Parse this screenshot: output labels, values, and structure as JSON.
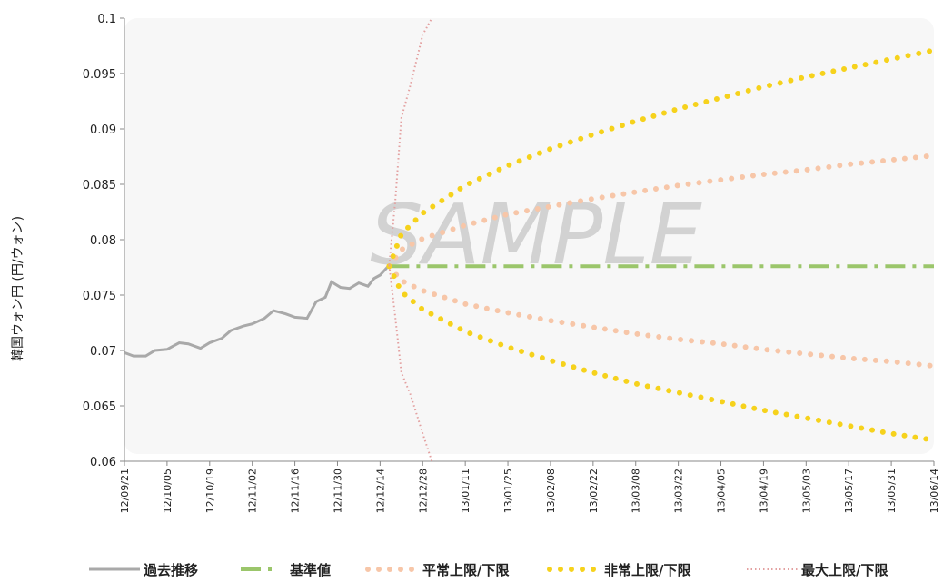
{
  "chart_data": {
    "type": "line",
    "ylabel": "韓国ウォン円 (円/ウォン)",
    "watermark": "SAMPLE",
    "xlim": [
      "12/09/21",
      "13/06/14"
    ],
    "xticks": [
      "12/09/21",
      "12/10/05",
      "12/10/19",
      "12/11/02",
      "12/11/16",
      "12/11/30",
      "12/12/14",
      "12/12/28",
      "13/01/11",
      "13/01/25",
      "13/02/08",
      "13/02/22",
      "13/03/08",
      "13/03/22",
      "13/04/05",
      "13/04/19",
      "13/05/03",
      "13/05/17",
      "13/05/31",
      "13/06/14"
    ],
    "ylim": [
      0.06,
      0.1
    ],
    "yticks": [
      0.06,
      0.065,
      0.07,
      0.075,
      0.08,
      0.085,
      0.09,
      0.095,
      0.1
    ],
    "series": [
      {
        "name": "過去推移",
        "color": "#a9a9a9",
        "line_style": "solid",
        "x": [
          "12/09/21",
          "12/09/24",
          "12/09/28",
          "12/10/01",
          "12/10/05",
          "12/10/09",
          "12/10/12",
          "12/10/16",
          "12/10/19",
          "12/10/23",
          "12/10/26",
          "12/10/30",
          "12/11/02",
          "12/11/06",
          "12/11/09",
          "12/11/13",
          "12/11/16",
          "12/11/20",
          "12/11/23",
          "12/11/26",
          "12/11/28",
          "12/12/01",
          "12/12/04",
          "12/12/07",
          "12/12/10",
          "12/12/12",
          "12/12/14",
          "12/12/17"
        ],
        "values": [
          0.0698,
          0.0695,
          0.0695,
          0.07,
          0.0701,
          0.0707,
          0.0706,
          0.0702,
          0.0707,
          0.0711,
          0.0718,
          0.0722,
          0.0724,
          0.0729,
          0.0736,
          0.0733,
          0.073,
          0.0729,
          0.0744,
          0.0748,
          0.0762,
          0.0757,
          0.0756,
          0.0761,
          0.0758,
          0.0765,
          0.0768,
          0.0777
        ]
      },
      {
        "name": "基準値",
        "color": "#9bc66b",
        "line_style": "dashdot",
        "x": [
          "12/12/17",
          "12/12/21",
          "12/12/28",
          "13/01/11",
          "13/01/25",
          "13/02/08",
          "13/02/22",
          "13/03/08",
          "13/03/22",
          "13/04/05",
          "13/04/19",
          "13/05/03",
          "13/05/17",
          "13/05/31",
          "13/06/14"
        ],
        "values": [
          0.0776,
          0.0776,
          0.0776,
          0.0776,
          0.0776,
          0.0776,
          0.0776,
          0.0776,
          0.0776,
          0.0776,
          0.0776,
          0.0776,
          0.0776,
          0.0776,
          0.0776
        ]
      },
      {
        "name": "平常上限/下限",
        "color": "#f7c6a8",
        "line_style": "dots",
        "x": [
          "12/12/17",
          "12/12/21",
          "12/12/28",
          "13/01/11",
          "13/01/25",
          "13/02/08",
          "13/02/22",
          "13/03/08",
          "13/03/22",
          "13/04/05",
          "13/04/19",
          "13/05/03",
          "13/05/17",
          "13/05/31",
          "13/06/14"
        ],
        "values": [
          0.0776,
          0.0791,
          0.0801,
          0.0813,
          0.0823,
          0.083,
          0.0837,
          0.0843,
          0.0849,
          0.0854,
          0.0859,
          0.0863,
          0.0868,
          0.0872,
          0.0876
        ],
        "lower": [
          0.0776,
          0.0763,
          0.0754,
          0.0742,
          0.0734,
          0.0727,
          0.0721,
          0.0715,
          0.071,
          0.0706,
          0.0701,
          0.0697,
          0.0693,
          0.069,
          0.0686
        ]
      },
      {
        "name": "非常上限/下限",
        "color": "#f6d21c",
        "line_style": "dots",
        "x": [
          "12/12/17",
          "12/12/21",
          "12/12/28",
          "13/01/11",
          "13/01/25",
          "13/02/08",
          "13/02/22",
          "13/03/08",
          "13/03/22",
          "13/04/05",
          "13/04/19",
          "13/05/03",
          "13/05/17",
          "13/05/31",
          "13/06/14"
        ],
        "values": [
          0.0776,
          0.0805,
          0.0824,
          0.0849,
          0.0867,
          0.0882,
          0.0895,
          0.0907,
          0.0918,
          0.0928,
          0.0938,
          0.0947,
          0.0955,
          0.0963,
          0.0971
        ],
        "lower": [
          0.0776,
          0.0753,
          0.0737,
          0.0717,
          0.0703,
          0.0691,
          0.068,
          0.067,
          0.0662,
          0.0654,
          0.0646,
          0.0639,
          0.0632,
          0.0625,
          0.0619
        ]
      },
      {
        "name": "最大上限/下限",
        "color": "#e3a0a0",
        "line_style": "fine",
        "x": [
          "12/12/17",
          "12/12/19",
          "12/12/21",
          "12/12/24",
          "12/12/28",
          "12/12/31"
        ],
        "values": [
          0.0777,
          0.0835,
          0.091,
          0.094,
          0.0985,
          0.1
        ],
        "lower": [
          0.0777,
          0.073,
          0.068,
          0.066,
          0.0625,
          0.06
        ]
      }
    ]
  }
}
